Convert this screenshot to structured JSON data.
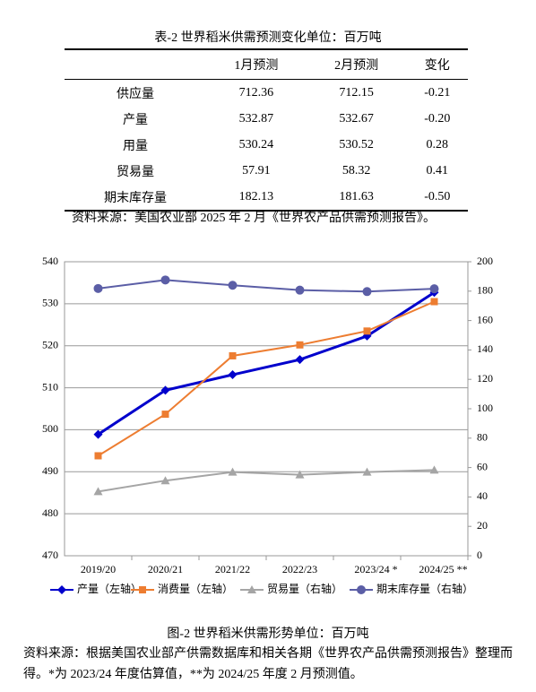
{
  "table": {
    "title": "表-2 世界稻米供需预测变化单位：百万吨",
    "columns": [
      "1月预测",
      "2月预测",
      "变化"
    ],
    "rows": [
      {
        "label": "供应量",
        "cells": [
          "712.36",
          "712.15",
          "-0.21"
        ]
      },
      {
        "label": "产量",
        "cells": [
          "532.87",
          "532.67",
          "-0.20"
        ]
      },
      {
        "label": "用量",
        "cells": [
          "530.24",
          "530.52",
          "0.28"
        ]
      },
      {
        "label": "贸易量",
        "cells": [
          "57.91",
          "58.32",
          "0.41"
        ]
      },
      {
        "label": "期末库存量",
        "cells": [
          "182.13",
          "181.63",
          "-0.50"
        ]
      }
    ],
    "source": "资料来源：美国农业部 2025 年 2 月《世界农产品供需预测报告》。"
  },
  "chart_data": {
    "type": "line",
    "categories": [
      "2019/20",
      "2020/21",
      "2021/22",
      "2022/23",
      "2023/24 *",
      "2024/25 **"
    ],
    "series": [
      {
        "name": "产量（左轴）",
        "color": "#0000cc",
        "marker": "diamond",
        "values": [
          498.9,
          509.4,
          513.1,
          516.7,
          522.3,
          532.7
        ]
      },
      {
        "name": "消费量（左轴）",
        "color": "#ed7d31",
        "marker": "square",
        "values": [
          493.8,
          503.7,
          517.6,
          520.2,
          523.5,
          530.5
        ]
      },
      {
        "name": "贸易量（右轴）",
        "color": "#a5a5a5",
        "marker": "triangle",
        "axis": "y2",
        "values": [
          43.7,
          51.1,
          56.9,
          55.1,
          56.9,
          58.3
        ]
      },
      {
        "name": "期末库存量（右轴）",
        "color": "#5b5ea6",
        "marker": "circle",
        "axis": "y2",
        "values": [
          181.8,
          187.6,
          184.0,
          180.7,
          179.7,
          181.6
        ]
      }
    ],
    "ylim": [
      470,
      540
    ],
    "yticks": [
      470,
      480,
      490,
      500,
      510,
      520,
      530,
      540
    ],
    "y2lim": [
      0,
      200
    ],
    "y2ticks": [
      0,
      20,
      40,
      60,
      80,
      100,
      120,
      140,
      160,
      180,
      200
    ],
    "grid": true,
    "legend": "bottom"
  },
  "caption": "图-2 世界稻米供需形势单位：百万吨",
  "note": "资料来源：根据美国农业部产供需数据库和相关各期《世界农产品供需预测报告》整理而得。*为 2023/24 年度估算值，**为 2024/25 年度 2 月预测值。"
}
